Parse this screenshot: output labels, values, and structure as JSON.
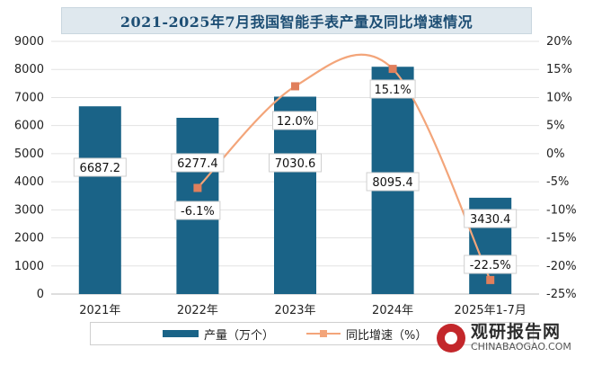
{
  "title": "2021-2025年7月我国智能手表产量及同比增速情况",
  "chart_data": {
    "type": "bar",
    "categories": [
      "2021年",
      "2022年",
      "2023年",
      "2024年",
      "2025年1-7月"
    ],
    "series": [
      {
        "name": "产量（万个）",
        "type": "bar",
        "axis": "left",
        "values": [
          6687.2,
          6277.4,
          7030.6,
          8095.4,
          3430.4
        ],
        "labels": [
          "6687.2",
          "6277.4",
          "7030.6",
          "8095.4",
          "3430.4"
        ]
      },
      {
        "name": "同比增速（%）",
        "type": "line",
        "axis": "right",
        "smooth": true,
        "values": [
          null,
          -6.1,
          12.0,
          15.1,
          -22.5
        ],
        "labels": [
          "",
          "-6.1%",
          "12.0%",
          "15.1%",
          "-22.5%"
        ]
      }
    ],
    "y_left": {
      "min": 0,
      "max": 9000,
      "step": 1000,
      "ticks": [
        "0",
        "1000",
        "2000",
        "3000",
        "4000",
        "5000",
        "6000",
        "7000",
        "8000",
        "9000"
      ]
    },
    "y_right": {
      "min": -25,
      "max": 20,
      "step": 5,
      "ticks": [
        "-25%",
        "-20%",
        "-15%",
        "-10%",
        "-5%",
        "0%",
        "5%",
        "10%",
        "15%",
        "20%"
      ]
    },
    "grid": true,
    "legend": "bottom",
    "colors": {
      "bar": "#1a6387",
      "line": "#f3a57a",
      "marker": "#e07f5c",
      "title_bg": "#dfe8ee",
      "title_text": "#1d4e74"
    }
  },
  "legend": {
    "bar_label": "产量（万个）",
    "line_label": "同比增速（%）"
  },
  "watermark": {
    "cn": "观研报告网",
    "en": "CHINABAOGAO.COM"
  }
}
